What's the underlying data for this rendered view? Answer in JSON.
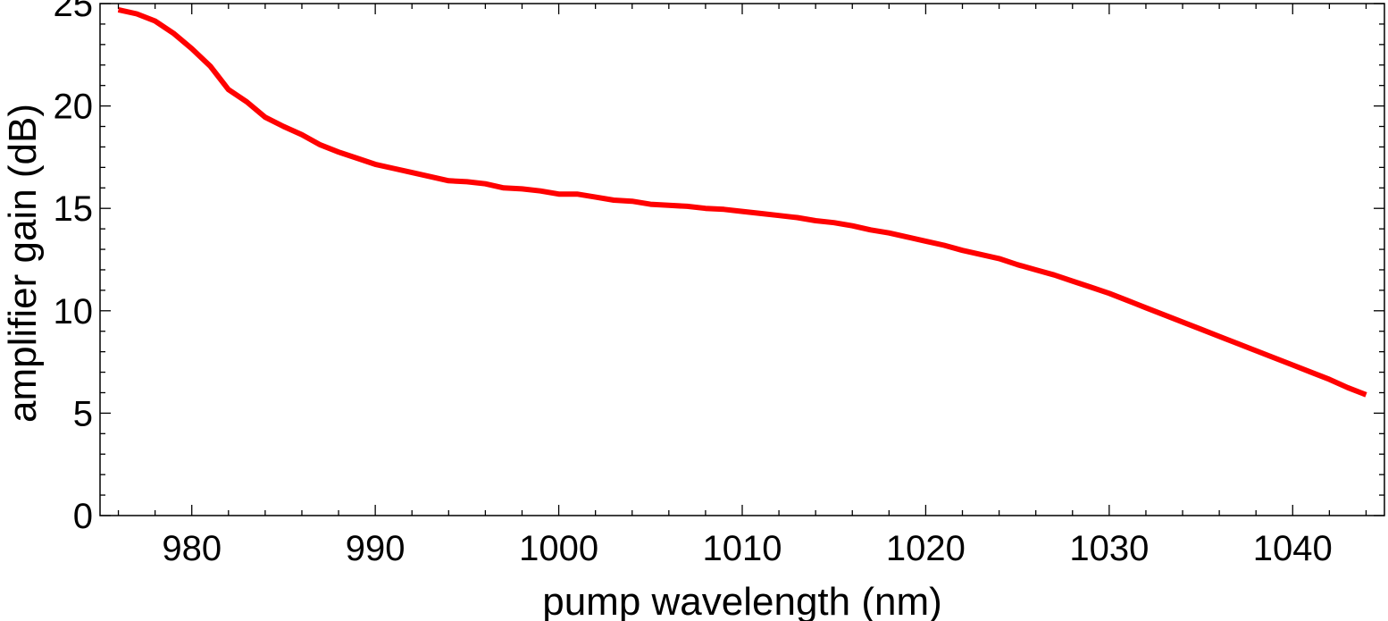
{
  "chart_data": {
    "type": "line",
    "title": "",
    "xlabel": "pump wavelength (nm)",
    "ylabel": "amplifier gain (dB)",
    "xlim": [
      975,
      1045
    ],
    "ylim": [
      0,
      25
    ],
    "x_ticks": [
      980,
      990,
      1000,
      1010,
      1020,
      1030,
      1040
    ],
    "x_tick_labels": [
      "980",
      "990",
      "1000",
      "1010",
      "1020",
      "1030",
      "1040"
    ],
    "y_ticks": [
      0,
      5,
      10,
      15,
      20,
      25
    ],
    "y_tick_labels": [
      "0",
      "5",
      "10",
      "15",
      "20",
      "25"
    ],
    "grid": false,
    "series": [
      {
        "name": "amplifier gain",
        "color": "#ff0000",
        "x": [
          976,
          977,
          978,
          979,
          980,
          981,
          982,
          983,
          984,
          985,
          986,
          987,
          988,
          989,
          990,
          991,
          992,
          993,
          994,
          995,
          996,
          997,
          998,
          999,
          1000,
          1001,
          1002,
          1003,
          1004,
          1005,
          1006,
          1007,
          1008,
          1009,
          1010,
          1011,
          1012,
          1013,
          1014,
          1015,
          1016,
          1017,
          1018,
          1019,
          1020,
          1021,
          1022,
          1023,
          1024,
          1025,
          1026,
          1027,
          1028,
          1029,
          1030,
          1031,
          1032,
          1033,
          1034,
          1035,
          1036,
          1037,
          1038,
          1039,
          1040,
          1041,
          1042,
          1043,
          1044
        ],
        "y": [
          24.7,
          24.5,
          24.15,
          23.55,
          22.8,
          21.95,
          20.8,
          20.2,
          19.45,
          19.0,
          18.6,
          18.1,
          17.75,
          17.45,
          17.15,
          16.95,
          16.75,
          16.55,
          16.35,
          16.3,
          16.2,
          16.0,
          15.95,
          15.85,
          15.7,
          15.7,
          15.55,
          15.4,
          15.35,
          15.2,
          15.15,
          15.1,
          15.0,
          14.95,
          14.85,
          14.75,
          14.65,
          14.55,
          14.4,
          14.3,
          14.15,
          13.95,
          13.8,
          13.6,
          13.4,
          13.2,
          12.95,
          12.75,
          12.55,
          12.25,
          12.0,
          11.75,
          11.45,
          11.15,
          10.85,
          10.5,
          10.15,
          9.8,
          9.45,
          9.1,
          8.75,
          8.4,
          8.05,
          7.7,
          7.35,
          7.0,
          6.65,
          6.25,
          5.9
        ]
      }
    ]
  }
}
